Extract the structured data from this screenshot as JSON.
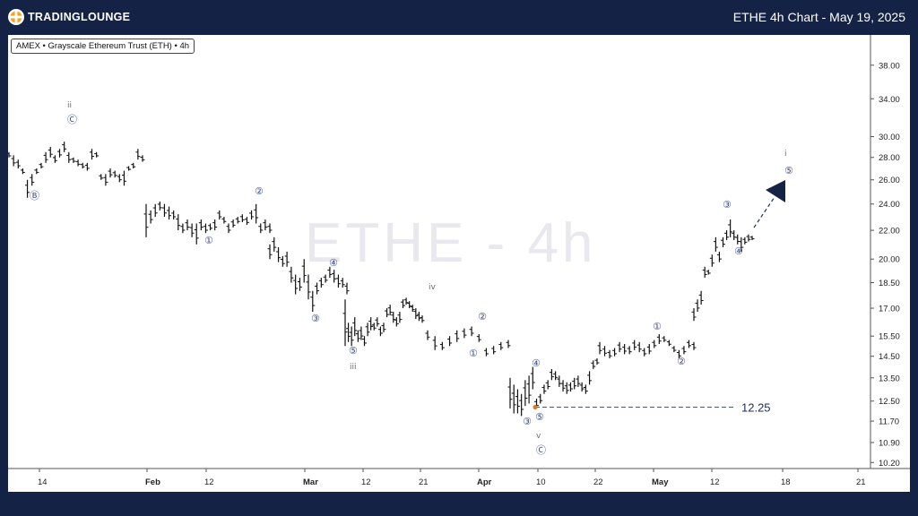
{
  "header": {
    "brand": "TRADINGLOUNGE",
    "title": "ETHE 4h Chart - May 19, 2025"
  },
  "chart_info": "AMEX • Grayscale Ethereum Trust (ETH) • 4h",
  "watermark": "ETHE - 4h",
  "chart_data": {
    "type": "ohlc",
    "title": "ETHE 4h Chart - May 19, 2025",
    "symbol": "ETHE",
    "timeframe": "4h",
    "ylim": [
      10.0,
      42.0
    ],
    "y_scale": "log",
    "y_ticks": [
      "38.00",
      "34.00",
      "30.00",
      "28.00",
      "26.00",
      "24.00",
      "22.00",
      "20.00",
      "18.50",
      "17.00",
      "15.50",
      "14.50",
      "13.50",
      "12.50",
      "11.70",
      "10.90",
      "10.20"
    ],
    "x_ticks": [
      "14",
      "Feb",
      "12",
      "Mar",
      "12",
      "21",
      "Apr",
      "10",
      "22",
      "May",
      "12",
      "18",
      "21"
    ],
    "x_ticks_bold": [
      "Feb",
      "Mar",
      "Apr",
      "May"
    ],
    "series": [
      {
        "name": "ETHE",
        "values": [
          [
            28.5,
            28.0
          ],
          [
            28.2,
            27.2
          ],
          [
            27.8,
            27.0
          ],
          [
            27.0,
            26.5
          ],
          [
            26.0,
            24.5
          ],
          [
            26.5,
            25.5
          ],
          [
            27.0,
            26.5
          ],
          [
            27.5,
            27.0
          ],
          [
            28.5,
            27.5
          ],
          [
            29.0,
            28.0
          ],
          [
            28.2,
            27.5
          ],
          [
            28.8,
            28.0
          ],
          [
            29.5,
            28.5
          ],
          [
            28.5,
            27.5
          ],
          [
            28.0,
            27.5
          ],
          [
            27.8,
            27.2
          ],
          [
            27.5,
            27.0
          ],
          [
            27.5,
            26.8
          ],
          [
            28.8,
            27.8
          ],
          [
            28.5,
            28.0
          ],
          [
            26.5,
            26.0
          ],
          [
            26.5,
            25.5
          ],
          [
            27.0,
            26.2
          ],
          [
            26.8,
            26.2
          ],
          [
            26.5,
            25.8
          ],
          [
            26.8,
            25.5
          ],
          [
            27.2,
            26.8
          ],
          [
            27.5,
            27.0
          ],
          [
            28.8,
            27.8
          ],
          [
            28.2,
            27.6
          ],
          [
            24.0,
            21.5
          ],
          [
            23.5,
            22.5
          ],
          [
            24.0,
            23.0
          ],
          [
            24.2,
            23.5
          ],
          [
            24.0,
            23.0
          ],
          [
            23.8,
            22.8
          ],
          [
            23.5,
            22.8
          ],
          [
            23.2,
            22.0
          ],
          [
            22.5,
            21.8
          ],
          [
            22.8,
            22.0
          ],
          [
            22.5,
            21.5
          ],
          [
            22.5,
            21.0
          ],
          [
            22.8,
            22.0
          ],
          [
            22.5,
            21.8
          ],
          [
            22.5,
            22.0
          ],
          [
            22.8,
            22.0
          ],
          [
            23.5,
            22.8
          ],
          [
            23.0,
            22.5
          ],
          [
            22.5,
            21.8
          ],
          [
            22.8,
            22.2
          ],
          [
            23.0,
            22.5
          ],
          [
            23.2,
            22.6
          ],
          [
            23.0,
            22.4
          ],
          [
            23.5,
            22.8
          ],
          [
            24.0,
            22.5
          ],
          [
            22.5,
            21.8
          ],
          [
            22.8,
            22.0
          ],
          [
            22.5,
            21.8
          ],
          [
            21.0,
            20.0
          ],
          [
            21.5,
            20.5
          ],
          [
            20.8,
            19.8
          ],
          [
            20.2,
            19.5
          ],
          [
            20.5,
            19.5
          ],
          [
            19.5,
            18.5
          ],
          [
            19.0,
            17.8
          ],
          [
            18.8,
            18.0
          ],
          [
            20.0,
            18.5
          ],
          [
            19.0,
            17.5
          ],
          [
            18.0,
            16.8
          ],
          [
            18.5,
            17.8
          ],
          [
            18.8,
            18.2
          ],
          [
            19.0,
            18.5
          ],
          [
            19.5,
            18.8
          ],
          [
            19.3,
            18.5
          ],
          [
            19.0,
            18.2
          ],
          [
            18.8,
            18.2
          ],
          [
            18.5,
            17.8
          ],
          [
            17.5,
            15.0
          ],
          [
            16.2,
            15.2
          ],
          [
            16.0,
            15.0
          ],
          [
            16.5,
            15.5
          ],
          [
            15.8,
            15.2
          ],
          [
            16.0,
            15.3
          ],
          [
            15.5,
            15.0
          ],
          [
            16.2,
            15.5
          ],
          [
            16.5,
            15.8
          ],
          [
            16.2,
            15.8
          ],
          [
            16.5,
            16.0
          ],
          [
            16.0,
            15.5
          ],
          [
            16.2,
            15.7
          ],
          [
            17.0,
            16.5
          ],
          [
            17.2,
            16.6
          ],
          [
            16.8,
            16.2
          ],
          [
            16.5,
            16.0
          ],
          [
            16.8,
            16.2
          ],
          [
            17.5,
            17.0
          ],
          [
            17.6,
            17.2
          ],
          [
            17.4,
            17.0
          ],
          [
            17.2,
            16.8
          ],
          [
            17.0,
            16.4
          ],
          [
            16.8,
            16.3
          ],
          [
            16.6,
            16.2
          ],
          [
            15.8,
            15.3
          ],
          [
            15.5,
            14.8
          ],
          [
            15.2,
            14.8
          ],
          [
            15.5,
            15.0
          ],
          [
            15.8,
            15.2
          ],
          [
            15.9,
            15.4
          ],
          [
            16.0,
            15.5
          ],
          [
            15.6,
            15.2
          ],
          [
            14.9,
            14.5
          ],
          [
            15.0,
            14.6
          ],
          [
            15.2,
            14.8
          ],
          [
            15.3,
            14.9
          ],
          [
            13.5,
            12.2
          ],
          [
            13.2,
            12.0
          ],
          [
            13.0,
            12.0
          ],
          [
            12.8,
            11.9
          ],
          [
            13.4,
            12.3
          ],
          [
            13.6,
            12.4
          ],
          [
            14.0,
            13.0
          ],
          [
            12.6,
            12.2
          ],
          [
            12.8,
            12.4
          ],
          [
            13.2,
            12.8
          ],
          [
            13.4,
            13.0
          ],
          [
            13.9,
            13.4
          ],
          [
            13.8,
            13.4
          ],
          [
            13.6,
            13.1
          ],
          [
            13.4,
            12.9
          ],
          [
            13.3,
            12.8
          ],
          [
            13.3,
            12.9
          ],
          [
            13.5,
            13.0
          ],
          [
            13.6,
            13.1
          ],
          [
            13.3,
            12.9
          ],
          [
            13.2,
            12.8
          ],
          [
            13.8,
            13.2
          ],
          [
            14.3,
            13.9
          ],
          [
            14.4,
            14.1
          ],
          [
            15.2,
            14.6
          ],
          [
            15.0,
            14.5
          ],
          [
            14.8,
            14.4
          ],
          [
            14.9,
            14.5
          ],
          [
            15.2,
            14.7
          ],
          [
            15.1,
            14.6
          ],
          [
            15.0,
            14.6
          ],
          [
            15.3,
            14.8
          ],
          [
            15.2,
            14.7
          ],
          [
            14.9,
            14.5
          ],
          [
            15.1,
            14.6
          ],
          [
            15.3,
            14.9
          ],
          [
            15.6,
            15.1
          ],
          [
            15.5,
            15.2
          ],
          [
            15.3,
            15.0
          ],
          [
            15.0,
            14.7
          ],
          [
            14.8,
            14.4
          ],
          [
            15.0,
            14.6
          ],
          [
            15.3,
            14.9
          ],
          [
            15.2,
            14.8
          ],
          [
            17.0,
            16.3
          ],
          [
            17.5,
            16.8
          ],
          [
            18.0,
            17.2
          ],
          [
            19.5,
            18.8
          ],
          [
            19.3,
            19.0
          ],
          [
            20.3,
            19.5
          ],
          [
            21.5,
            20.5
          ],
          [
            20.5,
            19.8
          ],
          [
            21.5,
            20.8
          ],
          [
            22.0,
            21.3
          ],
          [
            22.8,
            21.5
          ],
          [
            22.0,
            21.3
          ],
          [
            21.7,
            21.0
          ],
          [
            21.5,
            20.5
          ],
          [
            21.5,
            21.0
          ],
          [
            21.7,
            21.2
          ],
          [
            21.6,
            21.3
          ]
        ]
      }
    ],
    "annotations": {
      "wave_labels": [
        "ii",
        "Ⓒ",
        "Ⓑ",
        "①",
        "②",
        "③",
        "④",
        "⑤",
        "iii",
        "iv",
        "①",
        "②",
        "③",
        "④",
        "⑤",
        "v",
        "Ⓒ",
        "①",
        "②",
        "③",
        "④",
        "i",
        "⑤"
      ],
      "price_line": {
        "label": "12.25",
        "value": 12.25
      }
    }
  }
}
